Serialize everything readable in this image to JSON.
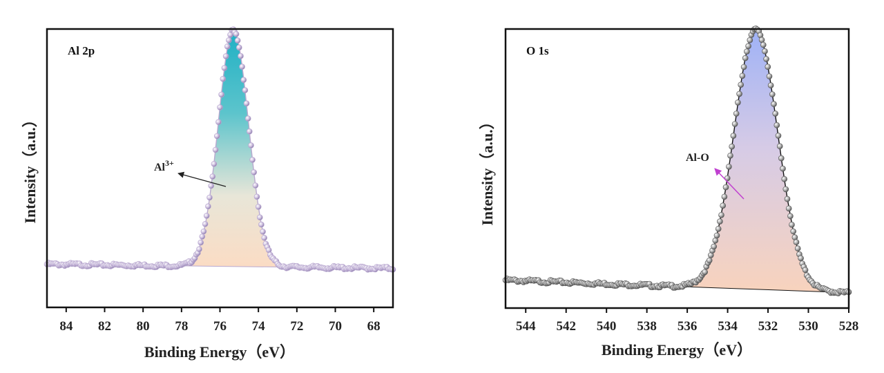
{
  "chart_data": [
    {
      "type": "line",
      "panel_label": "Al 2p",
      "xlabel": "Binding Energy（eV）",
      "ylabel": "Intensity（a.u.）",
      "xlim": [
        85,
        67
      ],
      "ylim": [
        0,
        1
      ],
      "x_ticks": [
        "84",
        "82",
        "80",
        "78",
        "76",
        "74",
        "72",
        "70",
        "68"
      ],
      "y_ticks": [],
      "annotation": {
        "text": "Al",
        "sup": "3+"
      },
      "peak": {
        "center": 75.3,
        "fwhm": 1.85,
        "baseline_start": 0.155,
        "baseline_end": 0.14,
        "height": 0.85
      },
      "series": [
        {
          "name": "raw",
          "marker_color": "#c9b9dc"
        },
        {
          "name": "Al3+ component",
          "fill_top": "#2fb6c6",
          "fill_bottom": "#fbe1c8"
        }
      ]
    },
    {
      "type": "line",
      "panel_label": "O 1s",
      "xlabel": "Binding Energy（eV）",
      "ylabel": "Intensity（a.u.）",
      "xlim": [
        545,
        528
      ],
      "ylim": [
        0,
        1
      ],
      "x_ticks": [
        "544",
        "542",
        "540",
        "538",
        "536",
        "534",
        "532",
        "530",
        "528"
      ],
      "y_ticks": [],
      "annotation": {
        "text": "Al-O",
        "arrow_color": "#c040d0"
      },
      "peak": {
        "center": 532.6,
        "fwhm": 2.55,
        "baseline_start": 0.1,
        "baseline_end": 0.055,
        "height": 0.93
      },
      "series": [
        {
          "name": "raw",
          "marker_color": "#9a9a9a"
        },
        {
          "name": "Al-O component",
          "fill_top": "#aab8f4",
          "fill_bottom": "#f8d6c0"
        }
      ]
    }
  ]
}
